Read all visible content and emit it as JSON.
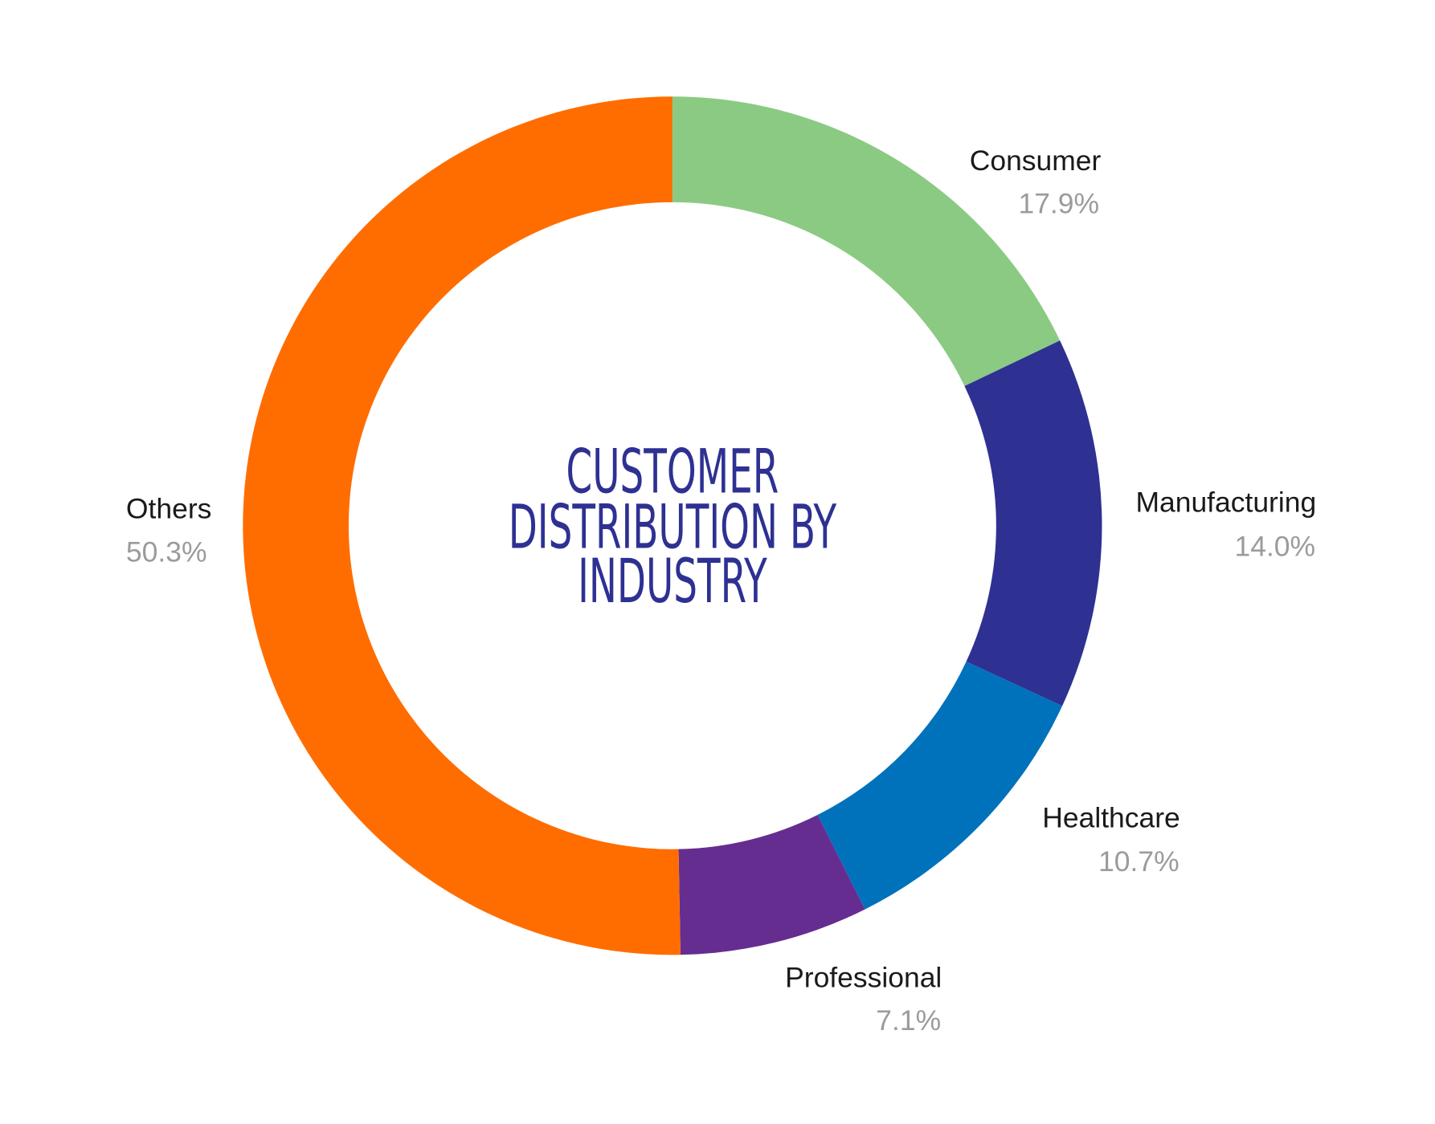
{
  "chart_data": {
    "type": "pie",
    "variant": "donut",
    "title": "CUSTOMER DISTRIBUTION BY INDUSTRY",
    "title_lines": [
      "CUSTOMER",
      "DISTRIBUTION BY",
      "INDUSTRY"
    ],
    "start": "top",
    "direction": "clockwise",
    "slices": [
      {
        "label": "Consumer",
        "value": 17.9,
        "display": "17.9%",
        "color": "#8BCA83"
      },
      {
        "label": "Manufacturing",
        "value": 14.0,
        "display": "14.0%",
        "color": "#2E3192"
      },
      {
        "label": "Healthcare",
        "value": 10.7,
        "display": "10.7%",
        "color": "#0072BC"
      },
      {
        "label": "Professional",
        "value": 7.1,
        "display": "7.1%",
        "color": "#662D91"
      },
      {
        "label": "Others",
        "value": 50.3,
        "display": "50.3%",
        "color": "#FF6D00"
      }
    ]
  }
}
